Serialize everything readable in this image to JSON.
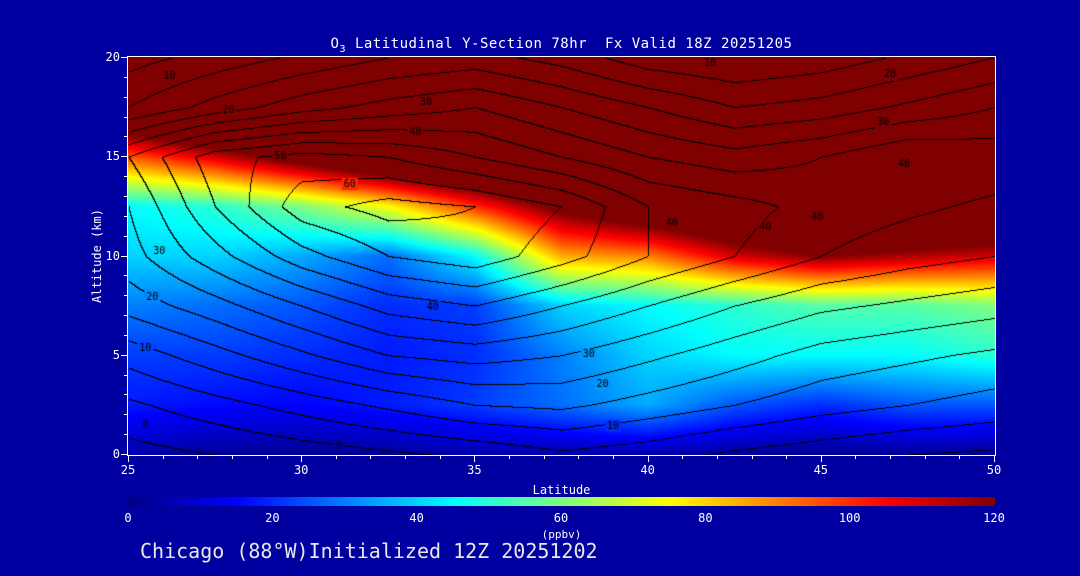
{
  "window": {
    "background": "#0000A0"
  },
  "title": {
    "species": "O",
    "subscript": "3",
    "rest": " Latitudinal Y-Section 78hr  Fx Valid 18Z 20251205"
  },
  "footer": {
    "text": "Chicago (88°W)Initialized 12Z 20251202"
  },
  "axes": {
    "x_label": "Latitude",
    "y_label": "Altitude (km)",
    "x_range": [
      25,
      50
    ],
    "y_range": [
      0,
      20
    ],
    "x_tick_labels": [
      25,
      30,
      35,
      40,
      45,
      50
    ],
    "y_tick_labels": [
      0,
      5,
      10,
      15,
      20
    ],
    "x_minor_step": 1,
    "y_minor_step": 1
  },
  "colorbar": {
    "unit_label": "(ppbv)",
    "tick_labels": [
      0,
      20,
      40,
      60,
      80,
      100,
      120
    ],
    "min": 0,
    "max": 120,
    "colormap": "jet"
  },
  "colors": {
    "background": "#0000A0",
    "axis_text": "#FFFFFF",
    "contour_line": "#000000"
  },
  "chart_data": {
    "type": "heatmap",
    "title": "O3 Latitudinal Y-Section 78hr  Fx Valid 18Z 20251205",
    "xlabel": "Latitude",
    "ylabel": "Altitude (km)",
    "xlim": [
      25,
      50
    ],
    "ylim": [
      0,
      20
    ],
    "x_lat_deg": [
      25,
      27.5,
      30,
      32.5,
      35,
      37.5,
      40,
      42.5,
      45,
      47.5,
      50
    ],
    "y_alt_km": [
      0,
      2.5,
      5,
      7.5,
      10,
      12.5,
      15,
      17.5,
      20
    ],
    "fill_field": {
      "name": "ozone_ppbv",
      "scale_range": [
        0,
        120
      ],
      "grid_rows_by_altitude": [
        [
          5,
          3,
          2,
          3,
          5,
          5,
          5,
          3,
          2,
          3,
          2
        ],
        [
          18,
          16,
          15,
          18,
          22,
          28,
          35,
          25,
          20,
          25,
          25
        ],
        [
          22,
          22,
          20,
          18,
          20,
          30,
          40,
          45,
          45,
          45,
          50
        ],
        [
          30,
          28,
          25,
          20,
          22,
          40,
          45,
          50,
          55,
          55,
          60
        ],
        [
          40,
          40,
          35,
          28,
          45,
          85,
          90,
          110,
          120,
          115,
          110
        ],
        [
          45,
          50,
          60,
          75,
          100,
          125,
          140,
          150,
          160,
          160,
          155
        ],
        [
          95,
          110,
          130,
          150,
          160,
          170,
          175,
          180,
          180,
          180,
          180
        ],
        [
          150,
          170,
          190,
          200,
          200,
          200,
          200,
          200,
          200,
          200,
          200
        ],
        [
          200,
          200,
          200,
          200,
          200,
          200,
          200,
          200,
          200,
          200,
          200
        ]
      ]
    },
    "contour_field": {
      "name": "overlaid_black_contours",
      "interval": 5,
      "labeled_levels": [
        0,
        10,
        20,
        30,
        40,
        50,
        60
      ],
      "grid_rows_by_altitude": [
        [
          -2,
          0,
          2,
          4,
          6,
          9,
          7,
          4,
          2,
          0,
          -1
        ],
        [
          4,
          8,
          12,
          16,
          20,
          21,
          18,
          15,
          12,
          10,
          8
        ],
        [
          12,
          18,
          24,
          30,
          32,
          30,
          26,
          22,
          18,
          16,
          14
        ],
        [
          22,
          28,
          35,
          42,
          45,
          40,
          35,
          30,
          26,
          24,
          22
        ],
        [
          28,
          38,
          48,
          55,
          58,
          52,
          45,
          40,
          35,
          32,
          30
        ],
        [
          30,
          45,
          58,
          62,
          60,
          55,
          45,
          42,
          38,
          36,
          34
        ],
        [
          35,
          48,
          52,
          50,
          45,
          40,
          35,
          32,
          35,
          40,
          38
        ],
        [
          15,
          22,
          28,
          32,
          35,
          30,
          25,
          20,
          22,
          26,
          30
        ],
        [
          8,
          12,
          16,
          20,
          22,
          18,
          12,
          10,
          12,
          16,
          20
        ]
      ]
    },
    "contour_labels": [
      {
        "value": 10,
        "lat": 26.2,
        "alt": 19.0
      },
      {
        "value": 20,
        "lat": 27.9,
        "alt": 17.3
      },
      {
        "value": 30,
        "lat": 33.6,
        "alt": 17.7
      },
      {
        "value": 40,
        "lat": 33.3,
        "alt": 16.2
      },
      {
        "value": 50,
        "lat": 29.4,
        "alt": 15.0
      },
      {
        "value": 60,
        "lat": 31.4,
        "alt": 13.6
      },
      {
        "value": 10,
        "lat": 41.8,
        "alt": 19.7
      },
      {
        "value": 20,
        "lat": 47.0,
        "alt": 19.1
      },
      {
        "value": 30,
        "lat": 46.8,
        "alt": 16.7
      },
      {
        "value": 40,
        "lat": 47.4,
        "alt": 14.6
      },
      {
        "value": 40,
        "lat": 40.7,
        "alt": 11.6
      },
      {
        "value": 40,
        "lat": 43.4,
        "alt": 11.4
      },
      {
        "value": 40,
        "lat": 44.9,
        "alt": 11.9
      },
      {
        "value": 30,
        "lat": 25.9,
        "alt": 10.2
      },
      {
        "value": 20,
        "lat": 25.7,
        "alt": 7.9
      },
      {
        "value": 10,
        "lat": 25.5,
        "alt": 5.3
      },
      {
        "value": 0,
        "lat": 25.5,
        "alt": 1.5
      },
      {
        "value": 40,
        "lat": 33.8,
        "alt": 7.4
      },
      {
        "value": 30,
        "lat": 38.3,
        "alt": 5.0
      },
      {
        "value": 20,
        "lat": 38.7,
        "alt": 3.5
      },
      {
        "value": 10,
        "lat": 39.0,
        "alt": 1.4
      },
      {
        "value": 0,
        "lat": 31.1,
        "alt": 0.4
      }
    ]
  }
}
